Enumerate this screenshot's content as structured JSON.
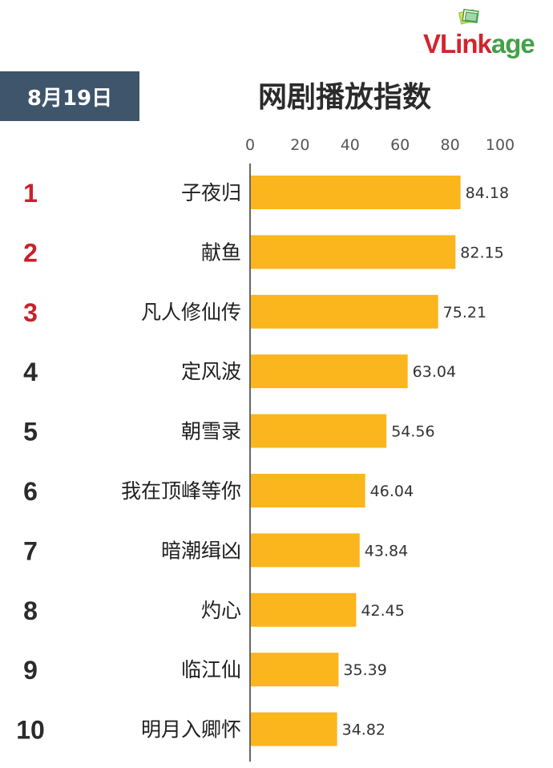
{
  "header": {
    "date": "8月19日",
    "title": "网剧播放指数"
  },
  "logo": {
    "text_red": "VLink",
    "text_green": "age",
    "icon": "stacked-cards-logo-icon"
  },
  "colors": {
    "bar": "#fbb51d",
    "rank_top3": "#c8212b",
    "rank_other": "#2b2b2b",
    "badge_bg": "#3e556b",
    "axis": "#333333"
  },
  "chart_data": {
    "type": "bar",
    "orientation": "horizontal",
    "title": "网剧播放指数",
    "xlim": [
      0,
      100
    ],
    "x_ticks": [
      0,
      20,
      40,
      60,
      80,
      100
    ],
    "ranks": [
      "1",
      "2",
      "3",
      "4",
      "5",
      "6",
      "7",
      "8",
      "9",
      "10"
    ],
    "categories": [
      "子夜归",
      "献鱼",
      "凡人修仙传",
      "定风波",
      "朝雪录",
      "我在顶峰等你",
      "暗潮缉凶",
      "灼心",
      "临江仙",
      "明月入卿怀"
    ],
    "values": [
      84.18,
      82.15,
      75.21,
      63.04,
      54.56,
      46.04,
      43.84,
      42.45,
      35.39,
      34.82
    ],
    "value_labels": [
      "84.18",
      "82.15",
      "75.21",
      "63.04",
      "54.56",
      "46.04",
      "43.84",
      "42.45",
      "35.39",
      "34.82"
    ],
    "grid": false,
    "legend": "none"
  }
}
